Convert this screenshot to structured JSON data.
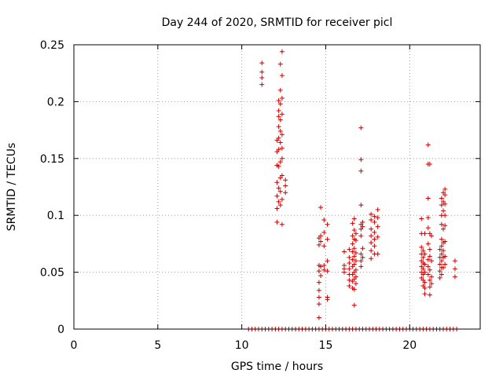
{
  "chart_data": {
    "type": "scatter",
    "title": "Day 244 of 2020, SRMTID for receiver picl",
    "xlabel": "GPS time / hours",
    "ylabel": "SRMTID / TECUs",
    "xlim": [
      0,
      24.2
    ],
    "ylim": [
      0,
      0.25
    ],
    "x_ticks": [
      0,
      5,
      10,
      15,
      20
    ],
    "y_ticks": [
      0,
      0.05,
      0.1,
      0.15,
      0.2,
      0.25
    ],
    "x_tick_labels": [
      "0",
      "5",
      "10",
      "15",
      "20"
    ],
    "y_tick_labels": [
      "0",
      "0.05",
      "0.1",
      "0.15",
      "0.2",
      "0.25"
    ],
    "grid": true,
    "marker": "plus",
    "color": "#cc0000",
    "points": [
      [
        11.2,
        0.234
      ],
      [
        11.2,
        0.226
      ],
      [
        11.2,
        0.221
      ],
      [
        11.2,
        0.215
      ],
      [
        12.1,
        0.166
      ],
      [
        12.1,
        0.156
      ],
      [
        12.1,
        0.144
      ],
      [
        12.1,
        0.129
      ],
      [
        12.1,
        0.117
      ],
      [
        12.1,
        0.106
      ],
      [
        12.1,
        0.094
      ],
      [
        12.2,
        0.201
      ],
      [
        12.2,
        0.192
      ],
      [
        12.2,
        0.187
      ],
      [
        12.2,
        0.178
      ],
      [
        12.2,
        0.168
      ],
      [
        12.2,
        0.158
      ],
      [
        12.2,
        0.143
      ],
      [
        12.2,
        0.124
      ],
      [
        12.2,
        0.112
      ],
      [
        12.3,
        0.233
      ],
      [
        12.3,
        0.21
      ],
      [
        12.3,
        0.198
      ],
      [
        12.3,
        0.184
      ],
      [
        12.3,
        0.174
      ],
      [
        12.3,
        0.164
      ],
      [
        12.3,
        0.147
      ],
      [
        12.3,
        0.133
      ],
      [
        12.3,
        0.121
      ],
      [
        12.3,
        0.109
      ],
      [
        12.4,
        0.244
      ],
      [
        12.4,
        0.223
      ],
      [
        12.4,
        0.203
      ],
      [
        12.4,
        0.189
      ],
      [
        12.4,
        0.171
      ],
      [
        12.4,
        0.159
      ],
      [
        12.4,
        0.15
      ],
      [
        12.4,
        0.135
      ],
      [
        12.4,
        0.114
      ],
      [
        12.4,
        0.092
      ],
      [
        12.6,
        0.131
      ],
      [
        12.6,
        0.126
      ],
      [
        12.6,
        0.12
      ],
      [
        14.6,
        0.08
      ],
      [
        14.6,
        0.074
      ],
      [
        14.6,
        0.056
      ],
      [
        14.6,
        0.051
      ],
      [
        14.6,
        0.041
      ],
      [
        14.6,
        0.034
      ],
      [
        14.6,
        0.028
      ],
      [
        14.6,
        0.022
      ],
      [
        14.6,
        0.01
      ],
      [
        14.7,
        0.107
      ],
      [
        14.7,
        0.082
      ],
      [
        14.7,
        0.077
      ],
      [
        14.7,
        0.055
      ],
      [
        14.7,
        0.047
      ],
      [
        14.9,
        0.096
      ],
      [
        14.9,
        0.085
      ],
      [
        14.9,
        0.073
      ],
      [
        14.9,
        0.056
      ],
      [
        14.9,
        0.052
      ],
      [
        15.1,
        0.092
      ],
      [
        15.1,
        0.079
      ],
      [
        15.1,
        0.06
      ],
      [
        15.1,
        0.051
      ],
      [
        15.1,
        0.028
      ],
      [
        15.1,
        0.026
      ],
      [
        16.1,
        0.068
      ],
      [
        16.1,
        0.056
      ],
      [
        16.1,
        0.053
      ],
      [
        16.1,
        0.05
      ],
      [
        16.4,
        0.07
      ],
      [
        16.4,
        0.063
      ],
      [
        16.4,
        0.058
      ],
      [
        16.4,
        0.053
      ],
      [
        16.4,
        0.048
      ],
      [
        16.4,
        0.043
      ],
      [
        16.4,
        0.038
      ],
      [
        16.6,
        0.093
      ],
      [
        16.6,
        0.082
      ],
      [
        16.6,
        0.075
      ],
      [
        16.6,
        0.068
      ],
      [
        16.6,
        0.061
      ],
      [
        16.6,
        0.055
      ],
      [
        16.6,
        0.048
      ],
      [
        16.6,
        0.042
      ],
      [
        16.6,
        0.036
      ],
      [
        16.7,
        0.097
      ],
      [
        16.7,
        0.087
      ],
      [
        16.7,
        0.079
      ],
      [
        16.7,
        0.071
      ],
      [
        16.7,
        0.064
      ],
      [
        16.7,
        0.057
      ],
      [
        16.7,
        0.05
      ],
      [
        16.7,
        0.044
      ],
      [
        16.7,
        0.035
      ],
      [
        16.7,
        0.021
      ],
      [
        16.8,
        0.084
      ],
      [
        16.8,
        0.078
      ],
      [
        16.8,
        0.067
      ],
      [
        16.8,
        0.06
      ],
      [
        16.8,
        0.052
      ],
      [
        16.8,
        0.046
      ],
      [
        16.8,
        0.04
      ],
      [
        17.1,
        0.177
      ],
      [
        17.1,
        0.149
      ],
      [
        17.1,
        0.139
      ],
      [
        17.1,
        0.109
      ],
      [
        17.1,
        0.092
      ],
      [
        17.1,
        0.088
      ],
      [
        17.1,
        0.082
      ],
      [
        17.1,
        0.066
      ],
      [
        17.1,
        0.06
      ],
      [
        17.1,
        0.055
      ],
      [
        17.2,
        0.094
      ],
      [
        17.2,
        0.09
      ],
      [
        17.2,
        0.071
      ],
      [
        17.2,
        0.063
      ],
      [
        17.7,
        0.101
      ],
      [
        17.7,
        0.096
      ],
      [
        17.7,
        0.088
      ],
      [
        17.7,
        0.082
      ],
      [
        17.7,
        0.076
      ],
      [
        17.7,
        0.069
      ],
      [
        17.7,
        0.062
      ],
      [
        17.9,
        0.099
      ],
      [
        17.9,
        0.094
      ],
      [
        17.9,
        0.085
      ],
      [
        17.9,
        0.079
      ],
      [
        17.9,
        0.073
      ],
      [
        17.9,
        0.066
      ],
      [
        18.1,
        0.105
      ],
      [
        18.1,
        0.098
      ],
      [
        18.1,
        0.09
      ],
      [
        18.1,
        0.081
      ],
      [
        18.1,
        0.066
      ],
      [
        20.7,
        0.097
      ],
      [
        20.7,
        0.084
      ],
      [
        20.7,
        0.072
      ],
      [
        20.7,
        0.066
      ],
      [
        20.7,
        0.06
      ],
      [
        20.7,
        0.055
      ],
      [
        20.7,
        0.05
      ],
      [
        20.7,
        0.045
      ],
      [
        20.8,
        0.069
      ],
      [
        20.8,
        0.063
      ],
      [
        20.8,
        0.058
      ],
      [
        20.8,
        0.053
      ],
      [
        20.8,
        0.048
      ],
      [
        20.8,
        0.043
      ],
      [
        20.8,
        0.038
      ],
      [
        20.9,
        0.084
      ],
      [
        20.9,
        0.066
      ],
      [
        20.9,
        0.057
      ],
      [
        20.9,
        0.05
      ],
      [
        20.9,
        0.041
      ],
      [
        20.9,
        0.036
      ],
      [
        20.9,
        0.031
      ],
      [
        21.1,
        0.162
      ],
      [
        21.1,
        0.145
      ],
      [
        21.1,
        0.115
      ],
      [
        21.1,
        0.098
      ],
      [
        21.1,
        0.089
      ],
      [
        21.1,
        0.075
      ],
      [
        21.1,
        0.061
      ],
      [
        21.1,
        0.055
      ],
      [
        21.1,
        0.048
      ],
      [
        21.2,
        0.145
      ],
      [
        21.2,
        0.084
      ],
      [
        21.2,
        0.07
      ],
      [
        21.2,
        0.064
      ],
      [
        21.2,
        0.052
      ],
      [
        21.2,
        0.043
      ],
      [
        21.2,
        0.037
      ],
      [
        21.2,
        0.03
      ],
      [
        21.3,
        0.082
      ],
      [
        21.3,
        0.06
      ],
      [
        21.3,
        0.046
      ],
      [
        21.3,
        0.04
      ],
      [
        21.8,
        0.07
      ],
      [
        21.8,
        0.063
      ],
      [
        21.8,
        0.057
      ],
      [
        21.8,
        0.051
      ],
      [
        21.8,
        0.045
      ],
      [
        21.9,
        0.115
      ],
      [
        21.9,
        0.109
      ],
      [
        21.9,
        0.1
      ],
      [
        21.9,
        0.092
      ],
      [
        21.9,
        0.079
      ],
      [
        21.9,
        0.073
      ],
      [
        21.9,
        0.066
      ],
      [
        21.9,
        0.06
      ],
      [
        21.9,
        0.054
      ],
      [
        21.9,
        0.048
      ],
      [
        22.0,
        0.12
      ],
      [
        22.0,
        0.112
      ],
      [
        22.0,
        0.104
      ],
      [
        22.0,
        0.088
      ],
      [
        22.0,
        0.076
      ],
      [
        22.0,
        0.069
      ],
      [
        22.0,
        0.063
      ],
      [
        22.0,
        0.054
      ],
      [
        22.1,
        0.123
      ],
      [
        22.1,
        0.118
      ],
      [
        22.1,
        0.11
      ],
      [
        22.1,
        0.1
      ],
      [
        22.1,
        0.091
      ],
      [
        22.1,
        0.077
      ],
      [
        22.1,
        0.064
      ],
      [
        22.1,
        0.057
      ],
      [
        22.7,
        0.06
      ],
      [
        22.7,
        0.053
      ],
      [
        22.7,
        0.046
      ],
      [
        10.4,
        0
      ],
      [
        10.6,
        0
      ],
      [
        10.8,
        0
      ],
      [
        11.0,
        0
      ],
      [
        11.2,
        0
      ],
      [
        11.4,
        0
      ],
      [
        11.6,
        0
      ],
      [
        11.8,
        0
      ],
      [
        12.0,
        0
      ],
      [
        12.2,
        0
      ],
      [
        12.4,
        0
      ],
      [
        12.6,
        0
      ],
      [
        12.8,
        0
      ],
      [
        13.0,
        0
      ],
      [
        13.2,
        0
      ],
      [
        13.4,
        0
      ],
      [
        13.6,
        0
      ],
      [
        13.8,
        0
      ],
      [
        14.0,
        0
      ],
      [
        14.2,
        0
      ],
      [
        14.4,
        0
      ],
      [
        14.6,
        0
      ],
      [
        14.8,
        0
      ],
      [
        15.0,
        0
      ],
      [
        15.2,
        0
      ],
      [
        15.4,
        0
      ],
      [
        15.6,
        0
      ],
      [
        15.8,
        0
      ],
      [
        16.0,
        0
      ],
      [
        16.2,
        0
      ],
      [
        16.4,
        0
      ],
      [
        16.6,
        0
      ],
      [
        16.8,
        0
      ],
      [
        17.0,
        0
      ],
      [
        17.2,
        0
      ],
      [
        17.4,
        0
      ],
      [
        17.6,
        0
      ],
      [
        17.8,
        0
      ],
      [
        18.0,
        0
      ],
      [
        18.2,
        0
      ],
      [
        18.4,
        0
      ],
      [
        18.6,
        0
      ],
      [
        18.8,
        0
      ],
      [
        19.0,
        0
      ],
      [
        19.2,
        0
      ],
      [
        19.4,
        0
      ],
      [
        19.6,
        0
      ],
      [
        19.8,
        0
      ],
      [
        20.0,
        0
      ],
      [
        20.2,
        0
      ],
      [
        20.4,
        0
      ],
      [
        20.6,
        0
      ],
      [
        20.8,
        0
      ],
      [
        21.0,
        0
      ],
      [
        21.2,
        0
      ],
      [
        21.4,
        0
      ],
      [
        21.6,
        0
      ],
      [
        21.8,
        0
      ],
      [
        22.0,
        0
      ],
      [
        22.2,
        0
      ],
      [
        22.4,
        0
      ],
      [
        22.6,
        0
      ],
      [
        22.8,
        0
      ]
    ]
  }
}
